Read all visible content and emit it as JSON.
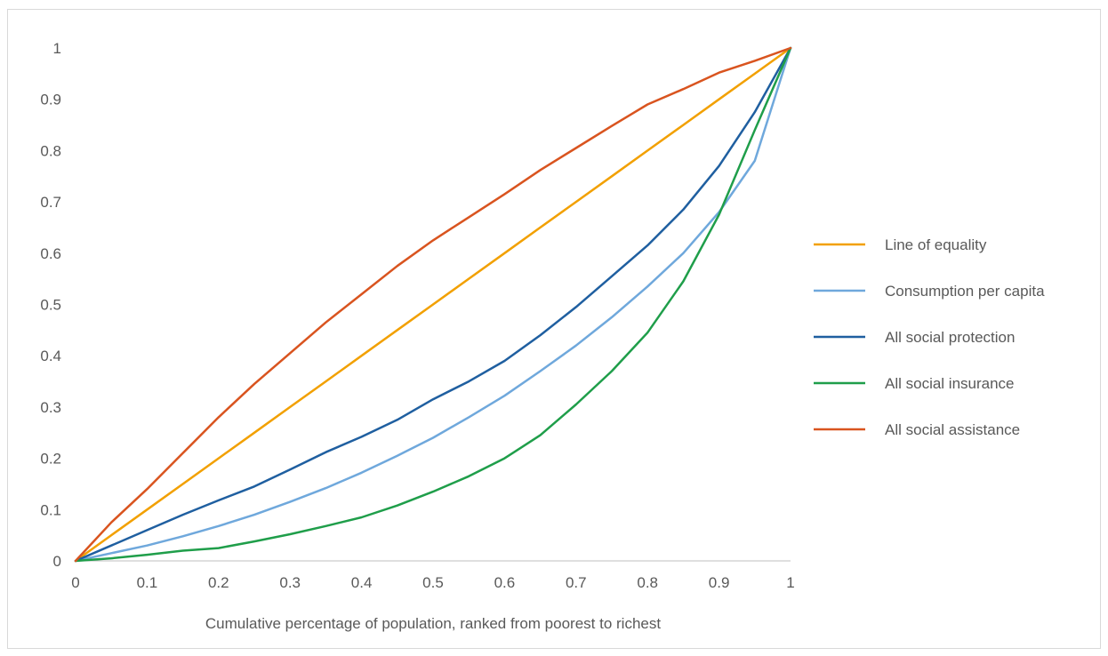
{
  "chart_data": {
    "type": "line",
    "title": "",
    "xlabel": "Cumulative percentage of population, ranked from poorest to richest",
    "ylabel": "",
    "xlim": [
      0,
      1
    ],
    "ylim": [
      0,
      1
    ],
    "x_ticks": [
      "0",
      "0.1",
      "0.2",
      "0.3",
      "0.4",
      "0.5",
      "0.6",
      "0.7",
      "0.8",
      "0.9",
      "1"
    ],
    "y_ticks": [
      "0",
      "0.1",
      "0.2",
      "0.3",
      "0.4",
      "0.5",
      "0.6",
      "0.7",
      "0.8",
      "0.9",
      "1"
    ],
    "grid": false,
    "legend_position": "right",
    "x": [
      0,
      0.05,
      0.1,
      0.15,
      0.2,
      0.25,
      0.3,
      0.35,
      0.4,
      0.45,
      0.5,
      0.55,
      0.6,
      0.65,
      0.7,
      0.75,
      0.8,
      0.85,
      0.9,
      0.95,
      1
    ],
    "series": [
      {
        "name": "Line of equality",
        "color": "#f2a000",
        "values": [
          0,
          0.05,
          0.1,
          0.15,
          0.2,
          0.25,
          0.3,
          0.35,
          0.4,
          0.45,
          0.5,
          0.55,
          0.6,
          0.65,
          0.7,
          0.75,
          0.8,
          0.85,
          0.9,
          0.95,
          1
        ]
      },
      {
        "name": "Consumption per capita",
        "color": "#6fa8dc",
        "values": [
          0,
          0.015,
          0.03,
          0.048,
          0.068,
          0.09,
          0.115,
          0.142,
          0.172,
          0.205,
          0.24,
          0.28,
          0.322,
          0.37,
          0.42,
          0.475,
          0.535,
          0.6,
          0.68,
          0.78,
          1
        ]
      },
      {
        "name": "All social protection",
        "color": "#1f5fa0",
        "values": [
          0,
          0.03,
          0.06,
          0.09,
          0.118,
          0.145,
          0.178,
          0.212,
          0.242,
          0.275,
          0.315,
          0.35,
          0.39,
          0.44,
          0.495,
          0.555,
          0.615,
          0.685,
          0.77,
          0.875,
          1
        ]
      },
      {
        "name": "All social insurance",
        "color": "#1f9e4a",
        "values": [
          0,
          0.005,
          0.012,
          0.02,
          0.025,
          0.038,
          0.052,
          0.068,
          0.085,
          0.108,
          0.135,
          0.165,
          0.2,
          0.245,
          0.305,
          0.37,
          0.445,
          0.545,
          0.675,
          0.84,
          1
        ]
      },
      {
        "name": "All social assistance",
        "color": "#d9541f",
        "values": [
          0,
          0.075,
          0.14,
          0.21,
          0.28,
          0.345,
          0.405,
          0.465,
          0.52,
          0.575,
          0.625,
          0.67,
          0.715,
          0.762,
          0.805,
          0.848,
          0.89,
          0.92,
          0.952,
          0.975,
          1
        ]
      }
    ]
  }
}
